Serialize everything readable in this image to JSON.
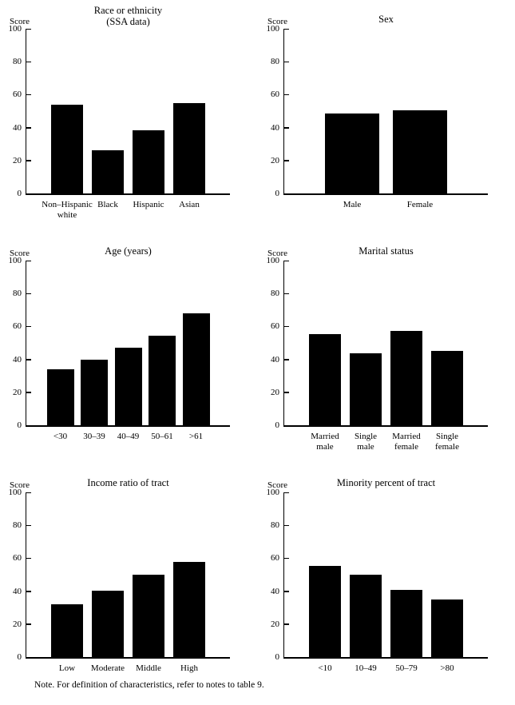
{
  "page": {
    "background_color": "#ffffff",
    "bar_color": "#000000",
    "text_color": "#000000"
  },
  "note": "Note. For definition of characteristics, refer to notes to table 9.",
  "chart_data": [
    {
      "type": "bar",
      "title": "Race or ethnicity\n(SSA data)",
      "ylabel": "Score",
      "ylim": [
        0,
        100
      ],
      "yticks": [
        0,
        20,
        40,
        60,
        80,
        100
      ],
      "grid": false,
      "legend": null,
      "categories": [
        "Non–Hispanic\nwhite",
        "Black",
        "Hispanic",
        "Asian"
      ],
      "values": [
        54,
        26,
        38.5,
        55
      ]
    },
    {
      "type": "bar",
      "title": "Sex",
      "ylabel": "Score",
      "ylim": [
        0,
        100
      ],
      "yticks": [
        0,
        20,
        40,
        60,
        80,
        100
      ],
      "grid": false,
      "legend": null,
      "categories": [
        "Male",
        "Female"
      ],
      "values": [
        48.5,
        50.5
      ]
    },
    {
      "type": "bar",
      "title": "Age (years)",
      "ylabel": "Score",
      "ylim": [
        0,
        100
      ],
      "yticks": [
        0,
        20,
        40,
        60,
        80,
        100
      ],
      "grid": false,
      "legend": null,
      "categories": [
        "<30",
        "30–39",
        "40–49",
        "50–61",
        ">61"
      ],
      "values": [
        34,
        40,
        47,
        54.5,
        68
      ]
    },
    {
      "type": "bar",
      "title": "Marital status",
      "ylabel": "Score",
      "ylim": [
        0,
        100
      ],
      "yticks": [
        0,
        20,
        40,
        60,
        80,
        100
      ],
      "grid": false,
      "legend": null,
      "categories": [
        "Married\nmale",
        "Single\nmale",
        "Married\nfemale",
        "Single\nfemale"
      ],
      "values": [
        55.5,
        43.5,
        57.5,
        45
      ]
    },
    {
      "type": "bar",
      "title": "Income ratio of tract",
      "ylabel": "Score",
      "ylim": [
        0,
        100
      ],
      "yticks": [
        0,
        20,
        40,
        60,
        80,
        100
      ],
      "grid": false,
      "legend": null,
      "categories": [
        "Low",
        "Moderate",
        "Middle",
        "High"
      ],
      "values": [
        32,
        40.5,
        50,
        58
      ]
    },
    {
      "type": "bar",
      "title": "Minority percent of tract",
      "ylabel": "Score",
      "ylim": [
        0,
        100
      ],
      "yticks": [
        0,
        20,
        40,
        60,
        80,
        100
      ],
      "grid": false,
      "legend": null,
      "categories": [
        "<10",
        "10–49",
        "50–79",
        ">80"
      ],
      "values": [
        55.5,
        50,
        41,
        35
      ]
    }
  ]
}
